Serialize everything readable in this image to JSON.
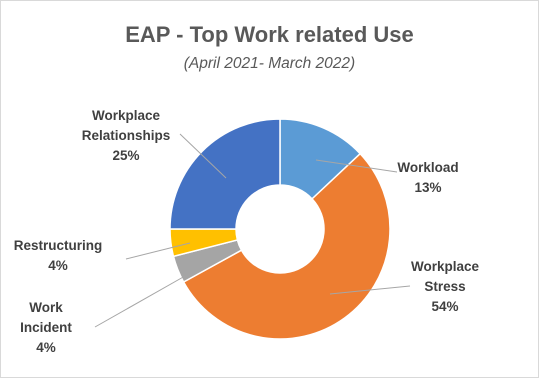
{
  "chart_data": {
    "type": "pie",
    "title": "EAP - Top Work related Use",
    "subtitle": "(April 2021- March 2022)",
    "slices": [
      {
        "label": [
          "Workload"
        ],
        "value": 13,
        "value_label": "13%",
        "color": "#5b9bd5"
      },
      {
        "label": [
          "Workplace",
          "Stress"
        ],
        "value": 54,
        "value_label": "54%",
        "color": "#ed7d31"
      },
      {
        "label": [
          "Work",
          "Incident"
        ],
        "value": 4,
        "value_label": "4%",
        "color": "#a5a5a5"
      },
      {
        "label": [
          "Restructuring"
        ],
        "value": 4,
        "value_label": "4%",
        "color": "#ffc000"
      },
      {
        "label": [
          "Workplace",
          "Relationships"
        ],
        "value": 25,
        "value_label": "25%",
        "color": "#4472c4"
      }
    ],
    "donut": true,
    "legend": "none",
    "data_labels": "outside with leader lines"
  }
}
